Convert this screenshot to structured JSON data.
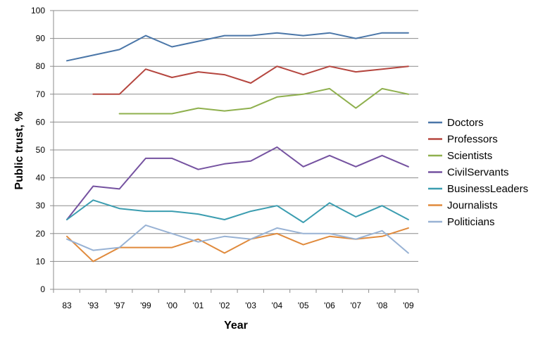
{
  "chart_data": {
    "type": "line",
    "xlabel": "Year",
    "ylabel": "Public trust, %",
    "ylim": [
      0,
      100
    ],
    "yticks": [
      0,
      10,
      20,
      30,
      40,
      50,
      60,
      70,
      80,
      90,
      100
    ],
    "grid": "horizontal",
    "legend_position": "right",
    "categories": [
      "83",
      "'93",
      "'97",
      "'99",
      "'00",
      "'01",
      "'02",
      "'03",
      "'04",
      "'05",
      "'06",
      "'07",
      "'08",
      "'09"
    ],
    "series": [
      {
        "name": "Doctors",
        "color": "#4a76a8",
        "values": [
          82,
          84,
          86,
          91,
          87,
          89,
          91,
          91,
          92,
          91,
          92,
          90,
          92,
          92
        ]
      },
      {
        "name": "Professors",
        "color": "#b5463f",
        "values": [
          null,
          70,
          70,
          79,
          76,
          78,
          77,
          74,
          80,
          77,
          80,
          78,
          79,
          80
        ]
      },
      {
        "name": "Scientists",
        "color": "#8fb04e",
        "values": [
          null,
          null,
          63,
          63,
          63,
          65,
          64,
          65,
          69,
          70,
          72,
          65,
          72,
          70
        ]
      },
      {
        "name": "CivilServants",
        "color": "#7552a0",
        "values": [
          25,
          37,
          36,
          47,
          47,
          43,
          45,
          46,
          51,
          44,
          48,
          44,
          48,
          44
        ]
      },
      {
        "name": "BusinessLeaders",
        "color": "#3b9db0",
        "values": [
          25,
          32,
          29,
          28,
          28,
          27,
          25,
          28,
          30,
          24,
          31,
          26,
          30,
          25
        ]
      },
      {
        "name": "Journalists",
        "color": "#e08a3c",
        "values": [
          19,
          10,
          15,
          15,
          15,
          18,
          13,
          18,
          20,
          16,
          19,
          18,
          19,
          22
        ]
      },
      {
        "name": "Politicians",
        "color": "#98b2d4",
        "values": [
          18,
          14,
          15,
          23,
          20,
          17,
          19,
          18,
          22,
          20,
          20,
          18,
          21,
          13
        ]
      }
    ]
  }
}
